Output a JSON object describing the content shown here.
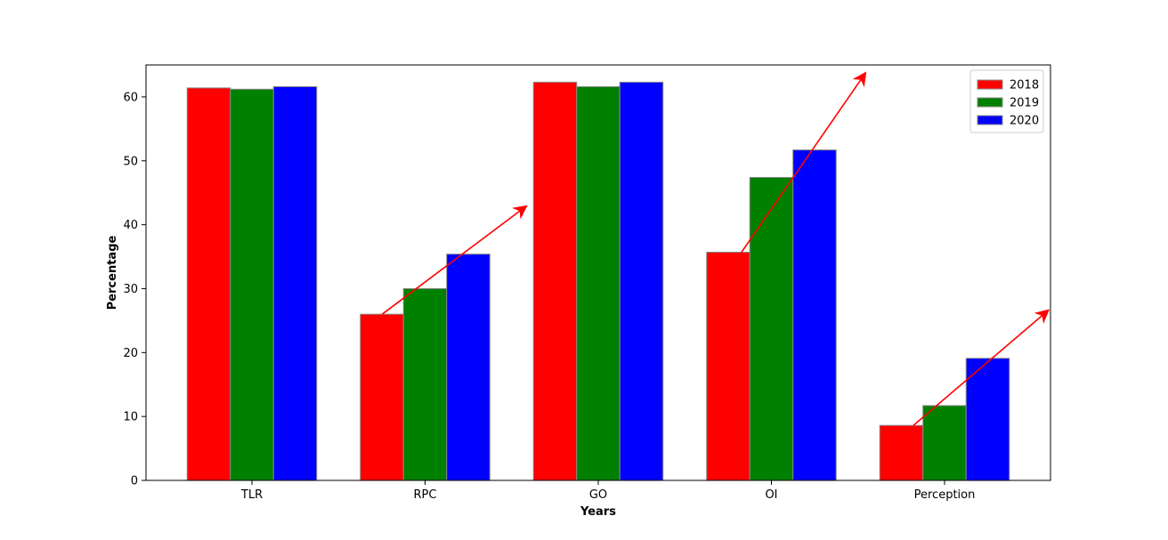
{
  "chart_data": {
    "type": "bar",
    "xlabel": "Years",
    "ylabel": "Percentage",
    "categories": [
      "TLR",
      "RPC",
      "GO",
      "OI",
      "Perception"
    ],
    "series": [
      {
        "name": "2018",
        "color": "#ff0000",
        "values": [
          61.4,
          26.0,
          62.3,
          35.7,
          8.6
        ]
      },
      {
        "name": "2019",
        "color": "#008000",
        "values": [
          61.2,
          30.0,
          61.6,
          47.4,
          11.7
        ]
      },
      {
        "name": "2020",
        "color": "#0000ff",
        "values": [
          61.6,
          35.4,
          62.3,
          51.7,
          19.1
        ]
      }
    ],
    "ylim": [
      0,
      65
    ],
    "yticks": [
      0,
      10,
      20,
      30,
      40,
      50,
      60
    ],
    "legend_position": "top-right",
    "grid": false,
    "annotations": [
      {
        "type": "arrow",
        "color": "#ff0000",
        "from": {
          "x": -0.33,
          "y": 26.0,
          "category": "RPC"
        },
        "to": {
          "x": 0.6,
          "y": 42.8,
          "category": "RPC"
        }
      },
      {
        "type": "arrow",
        "color": "#ff0000",
        "from": {
          "x": -0.23,
          "y": 35.7,
          "category": "OI"
        },
        "to": {
          "x": 0.63,
          "y": 63.6,
          "category": "OI"
        }
      },
      {
        "type": "arrow",
        "color": "#ff0000",
        "from": {
          "x": -0.24,
          "y": 8.6,
          "category": "Perception"
        },
        "to": {
          "x": 0.6,
          "y": 26.5,
          "category": "Perception"
        }
      }
    ]
  }
}
